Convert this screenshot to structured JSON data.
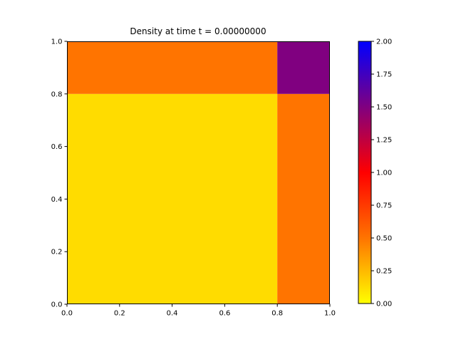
{
  "chart_data": {
    "type": "heatmap",
    "title": "Density at time t =     0.00000000",
    "xlabel": "",
    "ylabel": "",
    "xlim": [
      0.0,
      1.0
    ],
    "ylim": [
      0.0,
      1.0
    ],
    "grid": false,
    "xticks": [
      "0.0",
      "0.2",
      "0.4",
      "0.6",
      "0.8",
      "1.0"
    ],
    "yticks": [
      "0.0",
      "0.2",
      "0.4",
      "0.6",
      "0.8",
      "1.0"
    ],
    "x_edges": [
      0.0,
      0.8,
      1.0
    ],
    "y_edges": [
      0.0,
      0.8,
      1.0
    ],
    "cells": [
      {
        "x0": 0.0,
        "x1": 0.8,
        "y0": 0.0,
        "y1": 0.8,
        "value": 0.125
      },
      {
        "x0": 0.8,
        "x1": 1.0,
        "y0": 0.0,
        "y1": 0.8,
        "value": 0.5
      },
      {
        "x0": 0.0,
        "x1": 0.8,
        "y0": 0.8,
        "y1": 1.0,
        "value": 0.5
      },
      {
        "x0": 0.8,
        "x1": 1.0,
        "y0": 0.8,
        "y1": 1.0,
        "value": 1.5
      }
    ],
    "colorbar": {
      "range": [
        0.0,
        2.0
      ],
      "ticks": [
        "0.00",
        "0.25",
        "0.50",
        "0.75",
        "1.00",
        "1.25",
        "1.50",
        "1.75",
        "2.00"
      ],
      "stops": [
        {
          "value": 0.0,
          "color": "#ffff00"
        },
        {
          "value": 0.125,
          "color": "#ffdc00"
        },
        {
          "value": 0.5,
          "color": "#ff7400"
        },
        {
          "value": 1.0,
          "color": "#ff0000"
        },
        {
          "value": 1.5,
          "color": "#800080"
        },
        {
          "value": 2.0,
          "color": "#0000ff"
        }
      ]
    }
  }
}
